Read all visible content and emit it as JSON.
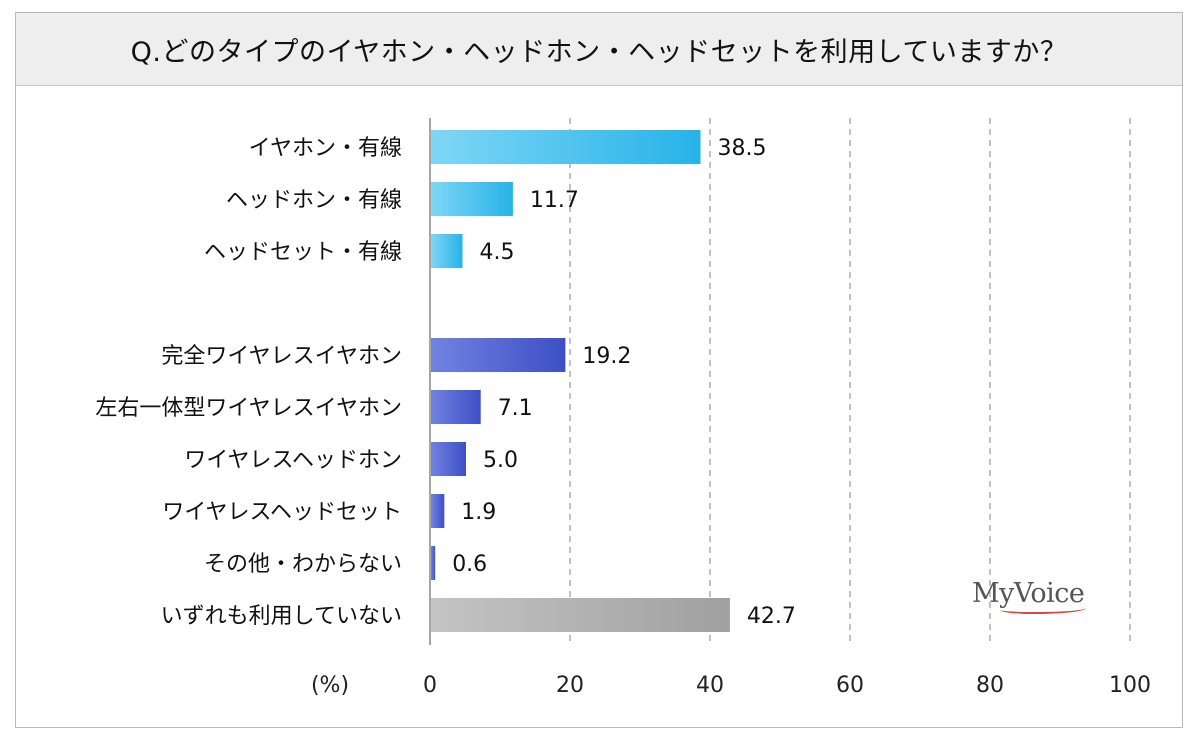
{
  "chart_data": {
    "type": "bar",
    "orientation": "horizontal",
    "title": "Q.どのタイプのイヤホン・ヘッドホン・ヘッドセットを利用していますか？",
    "unit_label": "(%)",
    "categories": [
      "イヤホン・有線",
      "ヘッドホン・有線",
      "ヘッドセット・有線",
      "完全ワイヤレスイヤホン",
      "左右一体型ワイヤレスイヤホン",
      "ワイヤレスヘッドホン",
      "ワイヤレスヘッドセット",
      "その他・わからない",
      "いずれも利用していない"
    ],
    "values": [
      38.5,
      11.7,
      4.5,
      19.2,
      7.1,
      5.0,
      1.9,
      0.6,
      42.7
    ],
    "value_labels": [
      "38.5",
      "11.7",
      "4.5",
      "19.2",
      "7.1",
      "5.0",
      "1.9",
      "0.6",
      "42.7"
    ],
    "groups": [
      "wired",
      "wired",
      "wired",
      "wireless",
      "wireless",
      "wireless",
      "wireless",
      "wireless",
      "none"
    ],
    "xlim": [
      0,
      100
    ],
    "xticks": [
      0,
      20,
      40,
      60,
      80,
      100
    ],
    "grid": "vertical dashed",
    "colors": {
      "wired": "#3fc0ec",
      "wireless": "#4a5fd0",
      "none": "#a8a8a8"
    }
  },
  "logo_text": "MyVoice"
}
